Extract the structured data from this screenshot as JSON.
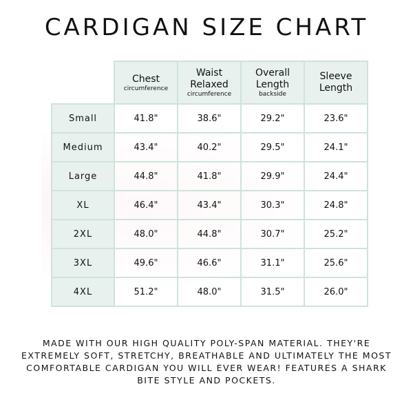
{
  "title": "CARDIGAN SIZE CHART",
  "table": {
    "headers": [
      {
        "label": "Chest",
        "sub": "circumference"
      },
      {
        "label": "Waist Relaxed",
        "sub": "circumference"
      },
      {
        "label": "Overall Length",
        "sub": "backside"
      },
      {
        "label": "Sleeve Length",
        "sub": ""
      }
    ],
    "rows": [
      {
        "size": "Small",
        "values": [
          "41.8\"",
          "38.6\"",
          "29.2\"",
          "23.6\""
        ]
      },
      {
        "size": "Medium",
        "values": [
          "43.4\"",
          "40.2\"",
          "29.5\"",
          "24.1\""
        ]
      },
      {
        "size": "Large",
        "values": [
          "44.8\"",
          "41.8\"",
          "29.9\"",
          "24.4\""
        ]
      },
      {
        "size": "XL",
        "values": [
          "46.4\"",
          "43.4\"",
          "30.3\"",
          "24.8\""
        ]
      },
      {
        "size": "2XL",
        "values": [
          "48.0\"",
          "44.8\"",
          "30.7\"",
          "25.2\""
        ]
      },
      {
        "size": "3XL",
        "values": [
          "49.6\"",
          "46.6\"",
          "31.1\"",
          "25.6\""
        ]
      },
      {
        "size": "4XL",
        "values": [
          "51.2\"",
          "48.0\"",
          "31.5\"",
          "26.0\""
        ]
      }
    ]
  },
  "footer": "Made with our high quality poly-span material. They're extremely soft, stretchy, breathable and ultimately the most comfortable cardigan you will ever wear! Features a shark bite style and pockets.",
  "colors": {
    "header_bg": "#e8f1ed",
    "border": "#cfe2db"
  }
}
